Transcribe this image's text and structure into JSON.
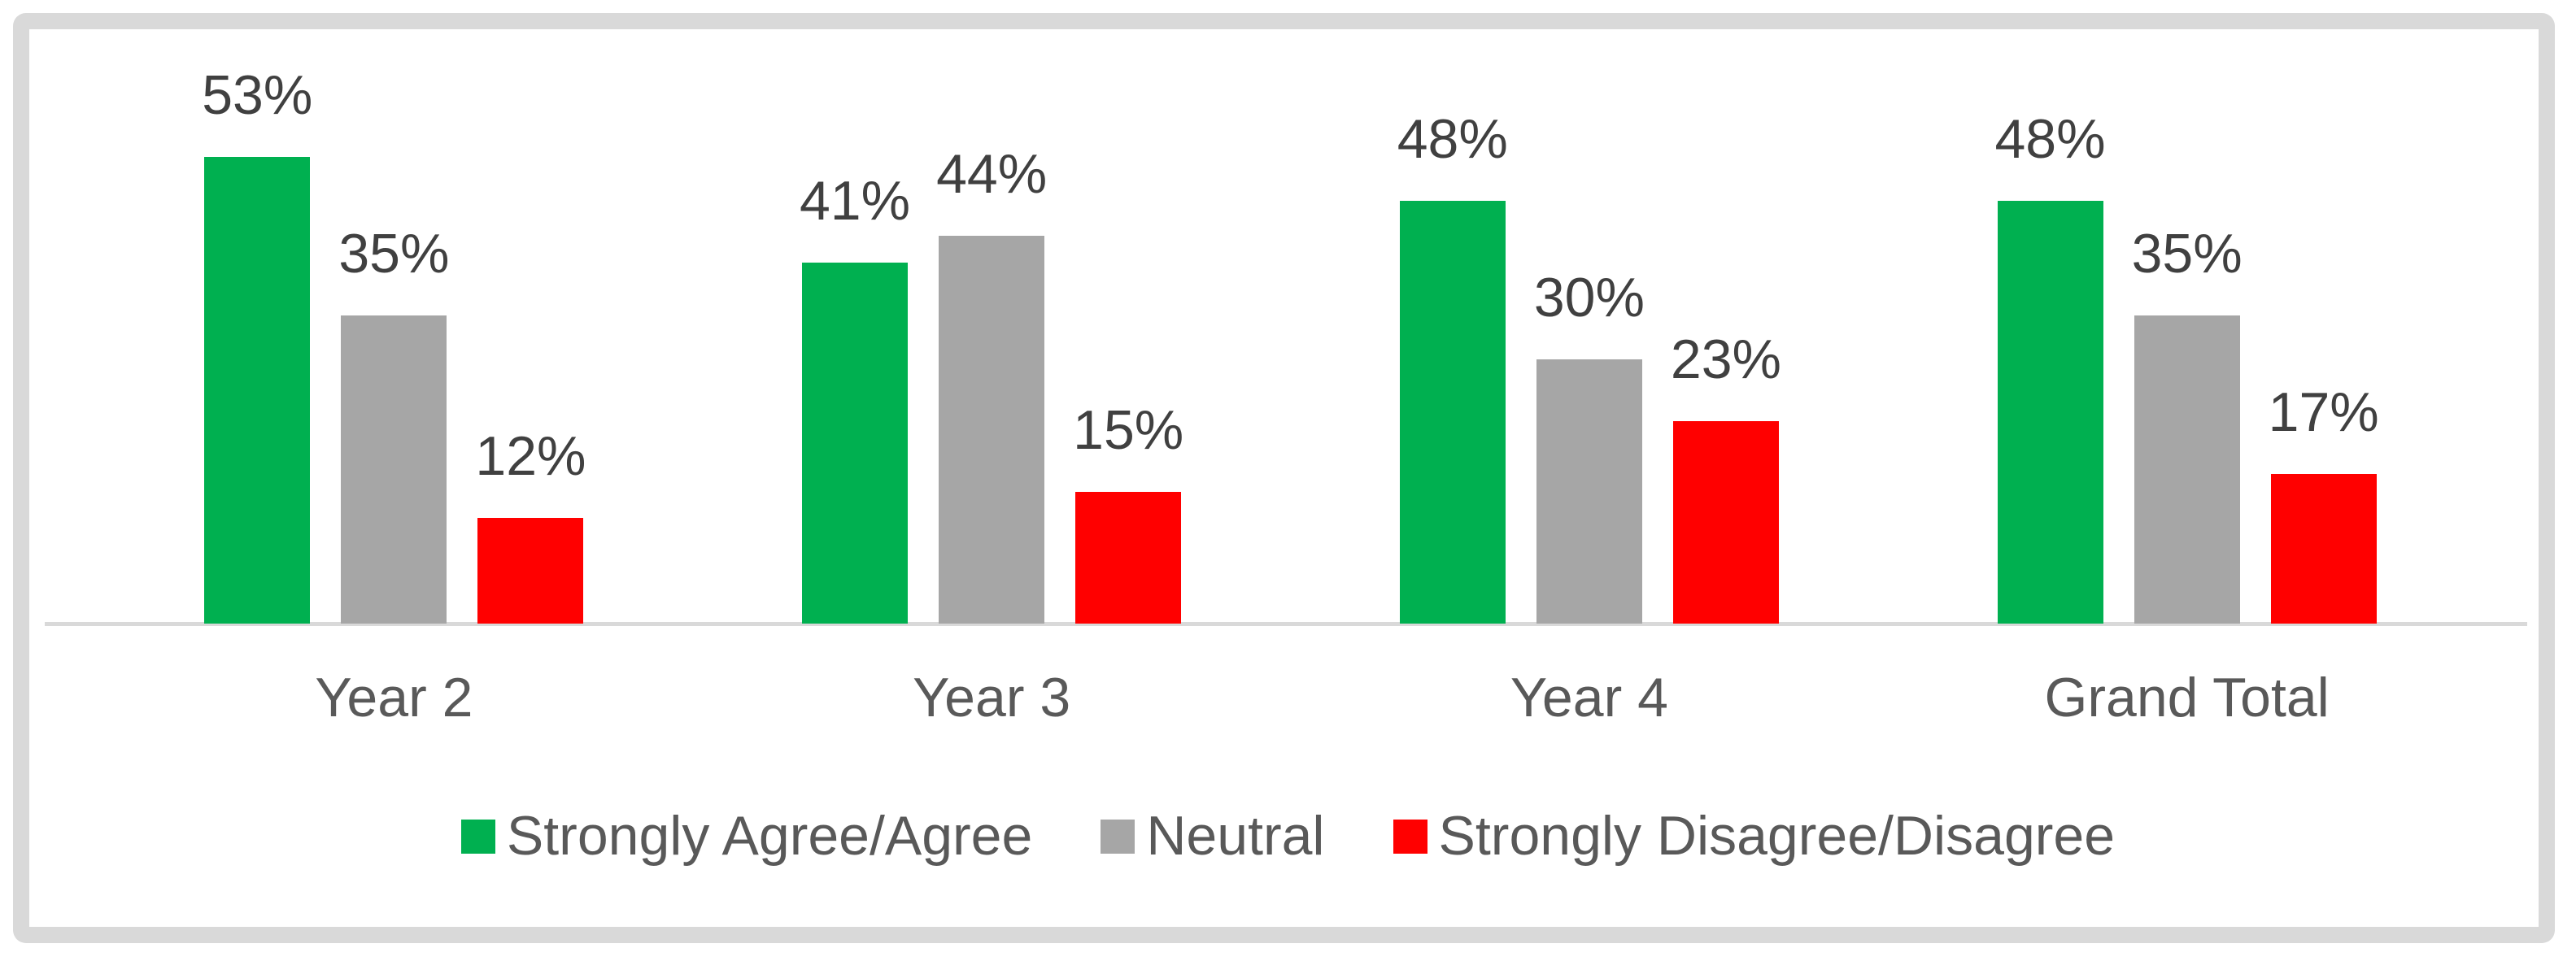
{
  "chart": {
    "background": "#FFFFFF",
    "frame_border_color": "#D9D9D9",
    "axis_line_color": "#D9D9D9",
    "axis_text_color": "#595959",
    "data_label_color": "#404040"
  },
  "chart_data": {
    "type": "bar",
    "title": "",
    "xlabel": "",
    "ylabel": "",
    "categories": [
      "Year 2",
      "Year 3",
      "Year 4",
      "Grand Total"
    ],
    "series": [
      {
        "name": "Strongly Agree/Agree",
        "color": "#00B050",
        "values": [
          53,
          41,
          48,
          48
        ]
      },
      {
        "name": "Neutral",
        "color": "#A6A6A6",
        "values": [
          35,
          44,
          30,
          35
        ]
      },
      {
        "name": "Strongly Disagree/Disagree",
        "color": "#FF0000",
        "values": [
          12,
          15,
          23,
          17
        ]
      }
    ],
    "data_labels": [
      [
        "53%",
        "41%",
        "48%",
        "48%"
      ],
      [
        "35%",
        "44%",
        "30%",
        "35%"
      ],
      [
        "12%",
        "15%",
        "23%",
        "17%"
      ]
    ],
    "value_suffix": "%",
    "ylim": [
      0,
      60
    ],
    "grid": false,
    "legend_position": "bottom"
  }
}
